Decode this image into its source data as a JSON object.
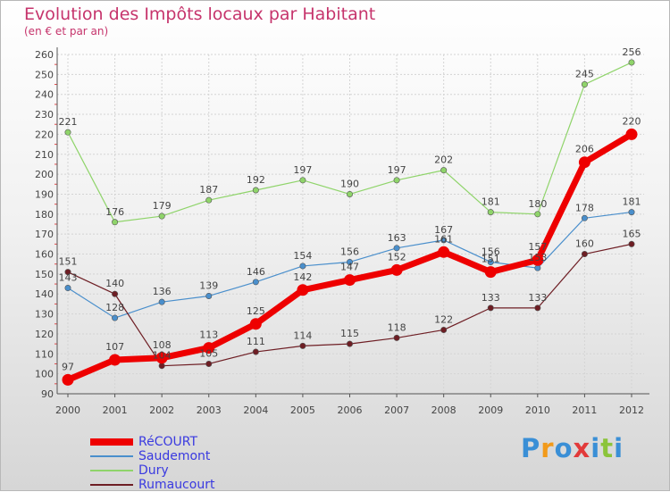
{
  "chart_data": {
    "type": "line",
    "title": "Evolution des Impôts locaux par Habitant",
    "subtitle": "(en € et par an)",
    "categories": [
      "2000",
      "2001",
      "2002",
      "2003",
      "2004",
      "2005",
      "2006",
      "2007",
      "2008",
      "2009",
      "2010",
      "2011",
      "2012"
    ],
    "ylim": [
      90,
      260
    ],
    "yticks": [
      90,
      100,
      110,
      120,
      130,
      140,
      150,
      160,
      170,
      180,
      190,
      200,
      210,
      220,
      230,
      240,
      250,
      260
    ],
    "grid": true,
    "series": [
      {
        "name": "Dury",
        "color": "#8fd46a",
        "values": [
          221,
          176,
          179,
          187,
          192,
          197,
          190,
          197,
          202,
          181,
          180,
          245,
          256
        ]
      },
      {
        "name": "Saudemont",
        "color": "#4a8fcc",
        "values": [
          143,
          128,
          136,
          139,
          146,
          154,
          156,
          163,
          167,
          156,
          153,
          178,
          181
        ]
      },
      {
        "name": "Rumaucourt",
        "color": "#6e1e24",
        "values": [
          151,
          140,
          104,
          105,
          111,
          114,
          115,
          118,
          122,
          133,
          133,
          160,
          165
        ]
      },
      {
        "name": "RéCOURT",
        "color": "#ee0000",
        "values": [
          97,
          107,
          108,
          113,
          125,
          142,
          147,
          152,
          161,
          151,
          157,
          206,
          220
        ]
      }
    ],
    "legend_order": [
      "RéCOURT",
      "Saudemont",
      "Dury",
      "Rumaucourt"
    ]
  },
  "logo": {
    "letters": [
      "P",
      "r",
      "o",
      "x",
      "i",
      "t",
      "i"
    ],
    "colors": [
      "#3a8fd6",
      "#f29a1a",
      "#3a8fd6",
      "#e23a3a",
      "#3a8fd6",
      "#8bc43a",
      "#3a8fd6"
    ]
  }
}
